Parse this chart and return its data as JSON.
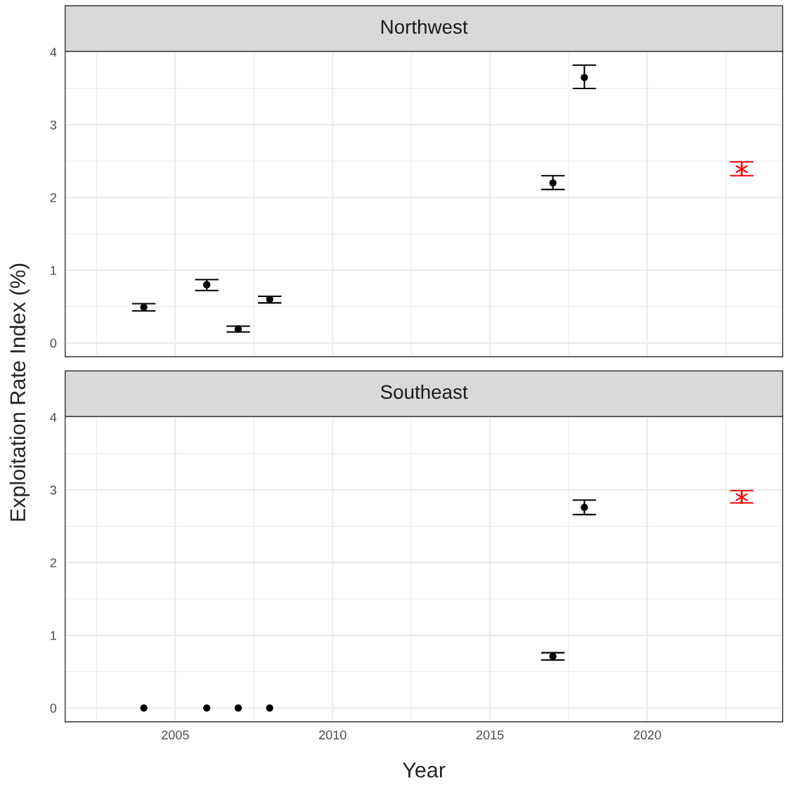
{
  "chart_data": [
    {
      "type": "scatter",
      "title": "Northwest",
      "ylabel": "Exploitation Rate Index (%)",
      "xlim": [
        2001.5,
        2024.3
      ],
      "ylim": [
        -0.19,
        4.01
      ],
      "xticks": [
        2005,
        2010,
        2015,
        2020
      ],
      "yticks": [
        0,
        1,
        2,
        3,
        4
      ],
      "grid": true,
      "tick_labels": "y",
      "legend": false,
      "series": [
        {
          "color": "#000000",
          "marker": "circle",
          "x": [
            2004,
            2006,
            2007,
            2008,
            2017,
            2018
          ],
          "values": [
            0.49,
            0.8,
            0.19,
            0.6,
            2.2,
            3.65
          ],
          "errors": [
            [
              0.44,
              0.54
            ],
            [
              0.72,
              0.87
            ],
            [
              0.15,
              0.23
            ],
            [
              0.55,
              0.64
            ],
            [
              2.11,
              2.3
            ],
            [
              3.5,
              3.82
            ]
          ]
        },
        {
          "color": "#ff0000",
          "marker": "cross",
          "x": [
            2023
          ],
          "values": [
            2.39
          ],
          "errors": [
            [
              2.3,
              2.49
            ]
          ]
        }
      ]
    },
    {
      "type": "scatter",
      "title": "Southeast",
      "xlabel": "Year",
      "xlim": [
        2001.5,
        2024.3
      ],
      "ylim": [
        -0.19,
        4.01
      ],
      "xticks": [
        2005,
        2010,
        2015,
        2020
      ],
      "yticks": [
        0,
        1,
        2,
        3,
        4
      ],
      "grid": true,
      "legend": false,
      "series": [
        {
          "color": "#000000",
          "marker": "circle",
          "x": [
            2004,
            2006,
            2007,
            2008,
            2017,
            2018
          ],
          "values": [
            0,
            0,
            0,
            0,
            0.71,
            2.76
          ],
          "errors": [
            null,
            null,
            null,
            null,
            [
              0.66,
              0.76
            ],
            [
              2.66,
              2.86
            ]
          ]
        },
        {
          "color": "#ff0000",
          "marker": "cross",
          "x": [
            2023
          ],
          "values": [
            2.9
          ],
          "errors": [
            [
              2.82,
              2.99
            ]
          ]
        }
      ]
    }
  ]
}
